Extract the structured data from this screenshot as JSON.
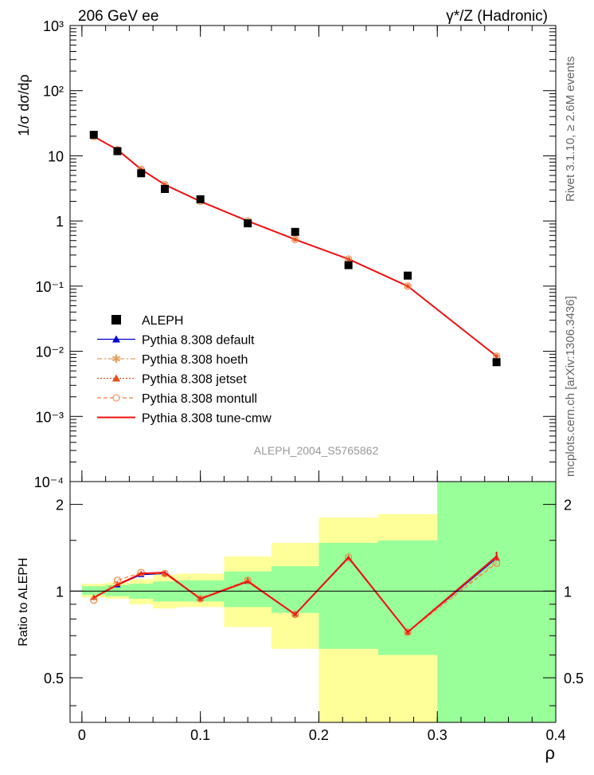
{
  "header": {
    "left": "206 GeV ee",
    "right": "γ*/Z (Hadronic)"
  },
  "side_labels": {
    "upper": "Rivet 3.1.10, ≥ 2.6M events",
    "lower": "mcplots.cern.ch [arXiv:1306.3436]"
  },
  "watermark": "ALEPH_2004_S5765862",
  "axes": {
    "ylabel_top": "1/σ dσ/dρ",
    "ylabel_bottom": "Ratio to ALEPH",
    "xlabel": "ρ",
    "x_ticks": [
      "0",
      "0.1",
      "0.2",
      "0.3",
      "0.4"
    ],
    "y_ticks_top": [
      "10⁻⁴",
      "10⁻³",
      "10⁻²",
      "10⁻¹",
      "1",
      "10",
      "10²",
      "10³"
    ],
    "y_ticks_bottom": [
      "0.5",
      "1",
      "2"
    ]
  },
  "legend": [
    {
      "label": "ALEPH",
      "color": "#000000",
      "marker": "square"
    },
    {
      "label": "Pythia 8.308 default",
      "color": "#0000cc",
      "marker": "triangle"
    },
    {
      "label": "Pythia 8.308 hoeth",
      "color": "#e0a060",
      "marker": "star"
    },
    {
      "label": "Pythia 8.308 jetset",
      "color": "#e05020",
      "marker": "triangle"
    },
    {
      "label": "Pythia 8.308 montull",
      "color": "#f08040",
      "marker": "circle"
    },
    {
      "label": "Pythia 8.308 tune-cmw",
      "color": "#ee1111",
      "marker": "line"
    }
  ],
  "chart_data": {
    "type": "line",
    "top_panel": {
      "x_range": [
        -0.01,
        0.4
      ],
      "y_range": [
        0.0001,
        1000
      ],
      "y_scale": "log",
      "aleph": {
        "x": [
          0.01,
          0.03,
          0.05,
          0.07,
          0.1,
          0.14,
          0.18,
          0.225,
          0.275,
          0.35
        ],
        "y": [
          21,
          11.8,
          5.4,
          3.1,
          2.15,
          0.92,
          0.68,
          0.21,
          0.145,
          0.0068
        ]
      },
      "mc": {
        "x": [
          0.01,
          0.03,
          0.05,
          0.07,
          0.1,
          0.14,
          0.18,
          0.225,
          0.275,
          0.35
        ],
        "y": [
          19.8,
          12.4,
          6.2,
          3.6,
          2.0,
          1.0,
          0.52,
          0.26,
          0.1,
          0.0084
        ]
      }
    },
    "bottom_panel": {
      "x_range": [
        -0.01,
        0.4
      ],
      "y_range": [
        0.35,
        2.4
      ],
      "y_scale": "log",
      "reference_line": 1,
      "yellow_band": [
        {
          "x0": 0.0,
          "x1": 0.02,
          "lo": 0.95,
          "hi": 1.06
        },
        {
          "x0": 0.02,
          "x1": 0.04,
          "lo": 0.94,
          "hi": 1.07
        },
        {
          "x0": 0.04,
          "x1": 0.06,
          "lo": 0.9,
          "hi": 1.1
        },
        {
          "x0": 0.06,
          "x1": 0.08,
          "lo": 0.87,
          "hi": 1.14
        },
        {
          "x0": 0.08,
          "x1": 0.12,
          "lo": 0.88,
          "hi": 1.15
        },
        {
          "x0": 0.12,
          "x1": 0.16,
          "lo": 0.75,
          "hi": 1.32
        },
        {
          "x0": 0.16,
          "x1": 0.2,
          "lo": 0.63,
          "hi": 1.47
        },
        {
          "x0": 0.2,
          "x1": 0.25,
          "lo": 0.35,
          "hi": 1.8
        },
        {
          "x0": 0.25,
          "x1": 0.3,
          "lo": 0.35,
          "hi": 1.85
        },
        {
          "x0": 0.3,
          "x1": 0.4,
          "lo": 0.35,
          "hi": 2.4
        }
      ],
      "green_band": [
        {
          "x0": 0.0,
          "x1": 0.02,
          "lo": 0.97,
          "hi": 1.04
        },
        {
          "x0": 0.02,
          "x1": 0.04,
          "lo": 0.96,
          "hi": 1.05
        },
        {
          "x0": 0.04,
          "x1": 0.06,
          "lo": 0.94,
          "hi": 1.06
        },
        {
          "x0": 0.06,
          "x1": 0.08,
          "lo": 0.92,
          "hi": 1.08
        },
        {
          "x0": 0.08,
          "x1": 0.12,
          "lo": 0.92,
          "hi": 1.09
        },
        {
          "x0": 0.12,
          "x1": 0.16,
          "lo": 0.88,
          "hi": 1.17
        },
        {
          "x0": 0.16,
          "x1": 0.2,
          "lo": 0.84,
          "hi": 1.22
        },
        {
          "x0": 0.2,
          "x1": 0.25,
          "lo": 0.63,
          "hi": 1.47
        },
        {
          "x0": 0.25,
          "x1": 0.3,
          "lo": 0.6,
          "hi": 1.5
        },
        {
          "x0": 0.3,
          "x1": 0.4,
          "lo": 0.35,
          "hi": 2.4
        }
      ],
      "series": [
        {
          "name": "Pythia 8.308 default",
          "color": "#0000cc",
          "dash": "",
          "x": [
            0.01,
            0.03,
            0.05,
            0.07,
            0.1,
            0.14,
            0.18,
            0.225,
            0.275,
            0.35
          ],
          "y": [
            0.95,
            1.05,
            1.14,
            1.15,
            0.94,
            1.08,
            0.83,
            1.3,
            0.72,
            1.3
          ]
        },
        {
          "name": "Pythia 8.308 hoeth",
          "color": "#e0a060",
          "dash": "6,3,2,3",
          "x": [
            0.01,
            0.03,
            0.05,
            0.07,
            0.1,
            0.14,
            0.18,
            0.225,
            0.275,
            0.35
          ],
          "y": [
            0.94,
            1.06,
            1.15,
            1.15,
            0.95,
            1.09,
            0.83,
            1.3,
            0.72,
            1.27
          ]
        },
        {
          "name": "Pythia 8.308 jetset",
          "color": "#e05020",
          "dash": "2,2",
          "x": [
            0.01,
            0.03,
            0.05,
            0.07,
            0.1,
            0.14,
            0.18,
            0.225,
            0.275,
            0.35
          ],
          "y": [
            0.95,
            1.06,
            1.15,
            1.15,
            0.94,
            1.09,
            0.83,
            1.3,
            0.72,
            1.31
          ]
        },
        {
          "name": "Pythia 8.308 montull",
          "color": "#f08040",
          "dash": "5,3",
          "x": [
            0.01,
            0.03,
            0.05,
            0.07,
            0.1,
            0.14,
            0.18,
            0.225,
            0.275,
            0.35
          ],
          "y": [
            0.93,
            1.09,
            1.16,
            1.15,
            0.94,
            1.09,
            0.83,
            1.31,
            0.72,
            1.25
          ]
        },
        {
          "name": "Pythia 8.308 tune-cmw",
          "color": "#ee1111",
          "dash": "",
          "x": [
            0.01,
            0.03,
            0.05,
            0.07,
            0.1,
            0.14,
            0.18,
            0.225,
            0.275,
            0.35
          ],
          "y": [
            0.95,
            1.05,
            1.15,
            1.16,
            0.94,
            1.08,
            0.83,
            1.31,
            0.72,
            1.32
          ]
        }
      ]
    }
  }
}
